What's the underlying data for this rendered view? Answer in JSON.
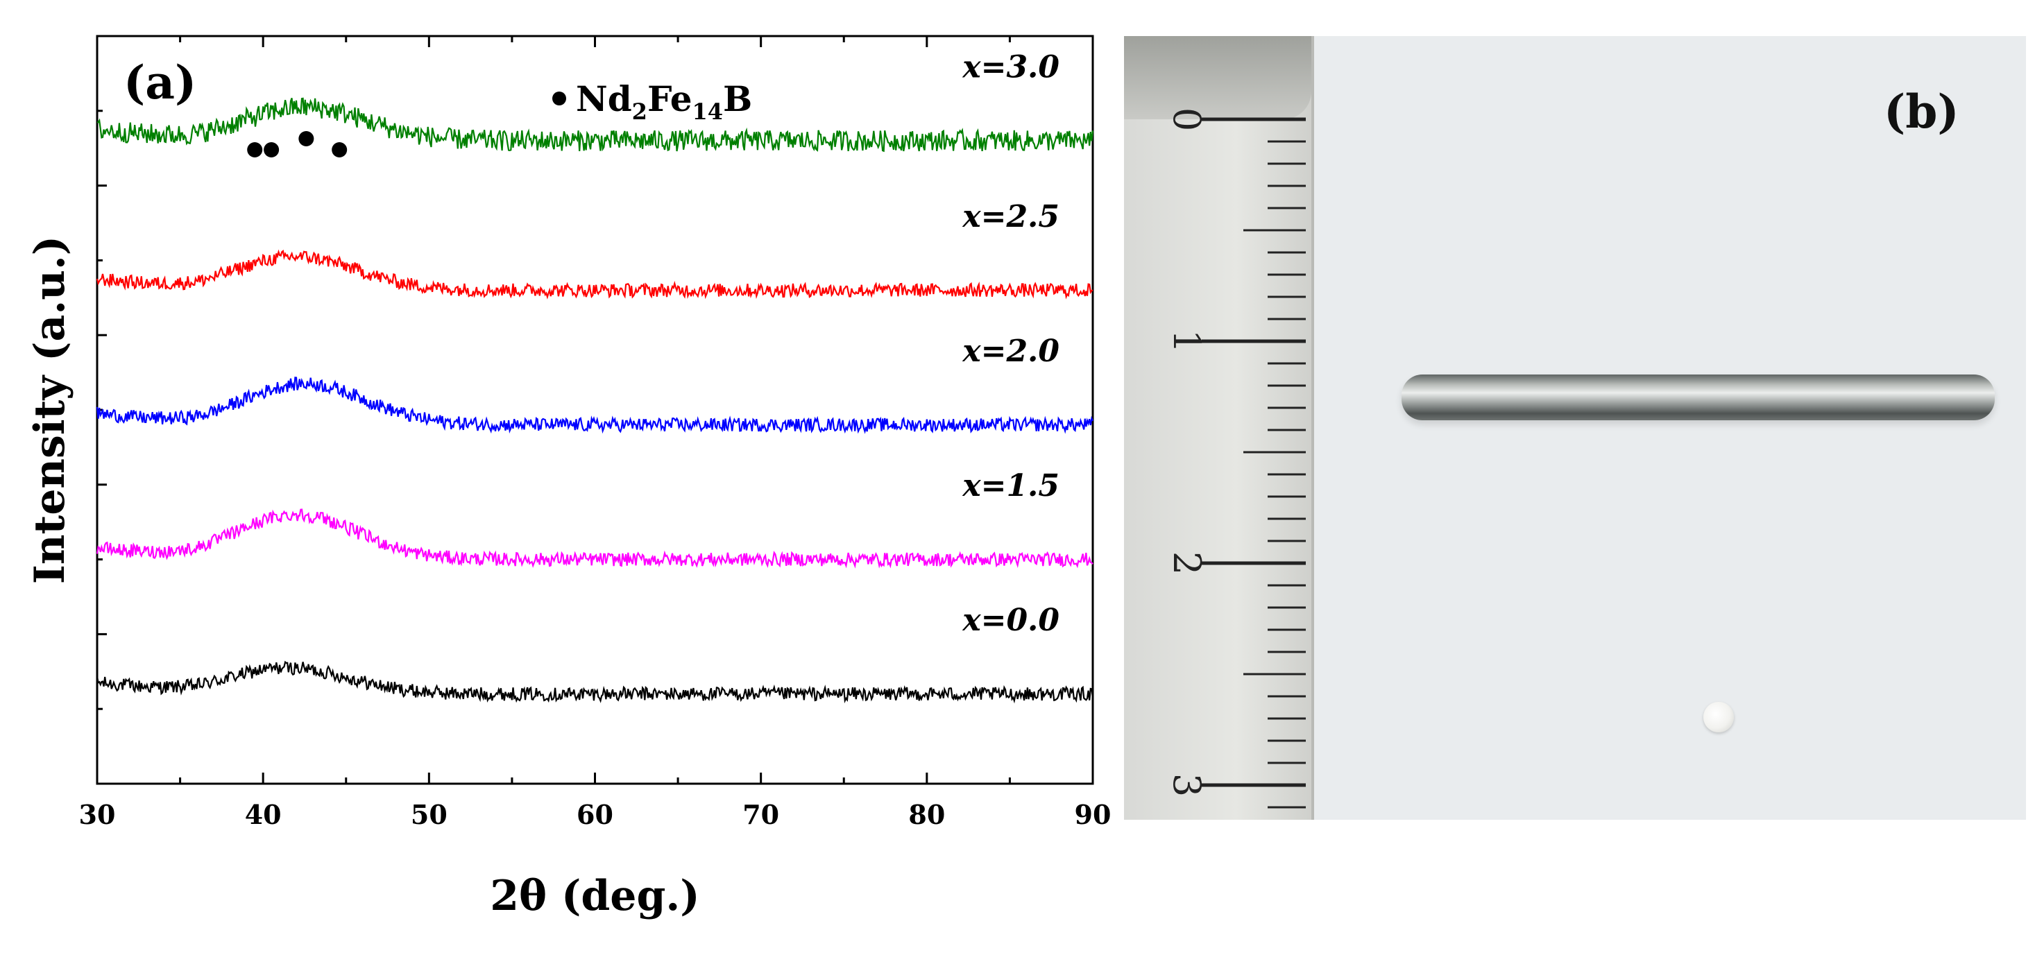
{
  "chart_data": {
    "type": "line",
    "panel_label": "(a)",
    "xlabel": "2θ  (deg.)",
    "ylabel": "Intensity (a.u.)",
    "xlim": [
      30,
      90
    ],
    "x_ticks": [
      30,
      40,
      50,
      60,
      70,
      80,
      90
    ],
    "legend": {
      "marker": "●",
      "text_base": "Nd",
      "sub1": "2",
      "text_mid": "Fe",
      "sub2": "14",
      "text_end": "B",
      "placement": "top-center"
    },
    "peak_markers_2theta": [
      39.5,
      40.5,
      42.6,
      44.6
    ],
    "series": [
      {
        "name": "x=0.0",
        "color": "#000000",
        "baseline": 0.12,
        "halo_height": 0.035,
        "halo_center": 41.5,
        "tail": 0.0
      },
      {
        "name": "x=1.5",
        "color": "#ff00ff",
        "baseline": 0.3,
        "halo_height": 0.06,
        "halo_center": 42.0,
        "tail": 0.0
      },
      {
        "name": "x=2.0",
        "color": "#0000ff",
        "baseline": 0.48,
        "halo_height": 0.055,
        "halo_center": 42.5,
        "tail": 0.0
      },
      {
        "name": "x=2.5",
        "color": "#ff0000",
        "baseline": 0.66,
        "halo_height": 0.045,
        "halo_center": 42.0,
        "tail": 0.0
      },
      {
        "name": "x=3.0",
        "color": "#008000",
        "baseline": 0.86,
        "halo_height": 0.045,
        "halo_center": 42.5,
        "tail": 0.0
      }
    ]
  },
  "photo": {
    "panel_label": "(b)",
    "ruler_numbers": [
      "0",
      "1",
      "2",
      "3"
    ],
    "colors": {
      "background": "#e9ecee",
      "rod": "#a6aaa8"
    }
  }
}
